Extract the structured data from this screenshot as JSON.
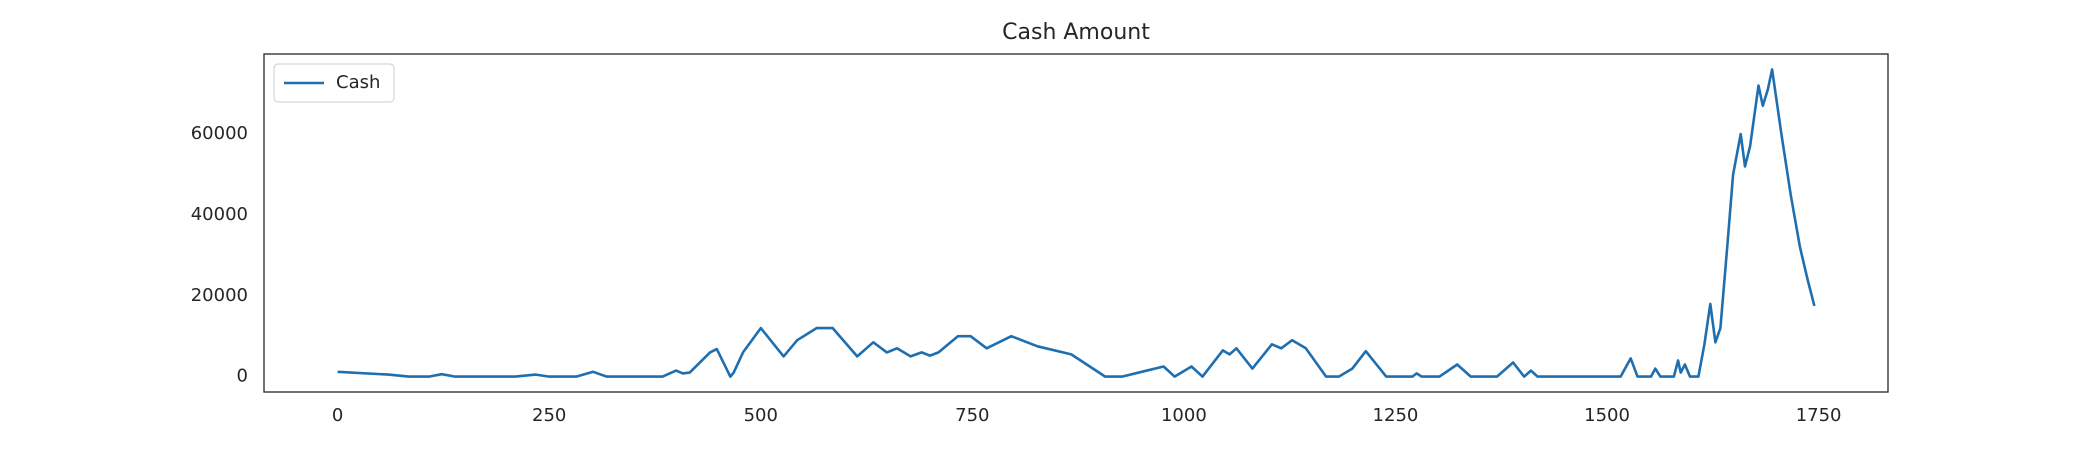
{
  "chart_data": {
    "type": "line",
    "title": "Cash Amount",
    "x": [
      0,
      60,
      84,
      108,
      123,
      139,
      210,
      234,
      250,
      282,
      302,
      318,
      384,
      400,
      408,
      416,
      440,
      448,
      464,
      468,
      479,
      500,
      527,
      543,
      566,
      585,
      614,
      633,
      649,
      661,
      677,
      690,
      700,
      710,
      733,
      748,
      767,
      796,
      827,
      867,
      907,
      927,
      976,
      989,
      1009,
      1022,
      1046,
      1054,
      1062,
      1081,
      1104,
      1115,
      1128,
      1144,
      1168,
      1183,
      1199,
      1215,
      1239,
      1270,
      1275,
      1281,
      1302,
      1323,
      1339,
      1370,
      1389,
      1402,
      1410,
      1418,
      1516,
      1528,
      1536,
      1552,
      1557,
      1563,
      1579,
      1584,
      1587,
      1592,
      1598,
      1608,
      1615,
      1622,
      1628,
      1634,
      1642,
      1649,
      1658,
      1663,
      1669,
      1679,
      1684,
      1690,
      1695,
      1706,
      1717,
      1728,
      1737,
      1745
    ],
    "series": [
      {
        "name": "Cash",
        "color": "#1f6fb0",
        "values": [
          1200,
          500,
          0,
          0,
          600,
          0,
          0,
          500,
          0,
          0,
          1200,
          0,
          0,
          1500,
          800,
          1000,
          6000,
          6800,
          0,
          1000,
          6000,
          12000,
          5000,
          9000,
          12000,
          12000,
          5000,
          8500,
          6000,
          7000,
          5000,
          6000,
          5200,
          6000,
          10000,
          10000,
          7000,
          10000,
          7500,
          5500,
          0,
          0,
          2500,
          0,
          2500,
          0,
          6500,
          5500,
          7000,
          2000,
          8000,
          7000,
          9000,
          7000,
          0,
          0,
          2000,
          6300,
          0,
          0,
          800,
          0,
          0,
          3000,
          0,
          0,
          3500,
          0,
          1500,
          0,
          0,
          4500,
          0,
          0,
          2000,
          0,
          0,
          4000,
          1000,
          3000,
          0,
          0,
          8000,
          18000,
          8500,
          12000,
          32000,
          50000,
          60000,
          52000,
          57000,
          72000,
          67000,
          71000,
          76000,
          60000,
          45000,
          32000,
          24000,
          17500
        ]
      }
    ],
    "xlim": [
      -87,
      1832
    ],
    "xticks": [
      0,
      250,
      500,
      750,
      1000,
      1250,
      1500,
      1750
    ],
    "ylim": [
      -3800,
      79800
    ],
    "yticks": [
      0,
      20000,
      40000,
      60000
    ],
    "grid": false,
    "legend": "upper left"
  }
}
